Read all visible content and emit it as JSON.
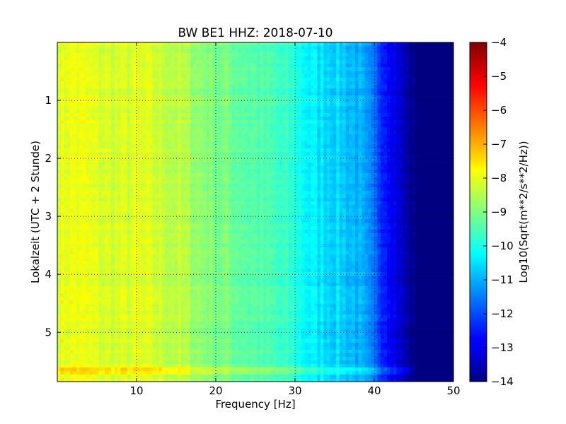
{
  "chart_data": {
    "type": "heatmap",
    "title": "BW BE1 HHZ: 2018-07-10",
    "xlabel": "Frequency [Hz]",
    "ylabel": "Lokalzeit (UTC + 2 Stunde)",
    "xlim": [
      0,
      50
    ],
    "ylim": [
      5.85,
      0
    ],
    "x_ticks": [
      10,
      20,
      30,
      40,
      50
    ],
    "x_tick_labels": [
      "10",
      "20",
      "30",
      "40",
      "50"
    ],
    "y_ticks": [
      1,
      2,
      3,
      4,
      5
    ],
    "y_tick_labels": [
      "1",
      "2",
      "3",
      "4",
      "5"
    ],
    "grid": true,
    "colormap": "jet",
    "colorbar": {
      "label": "Log10(Sqrt(m**2/s**2/Hz))",
      "range": [
        -14,
        -4
      ],
      "ticks": [
        -4,
        -5,
        -6,
        -7,
        -8,
        -9,
        -10,
        -11,
        -12,
        -13,
        -14
      ],
      "tick_labels": [
        "−4",
        "−5",
        "−6",
        "−7",
        "−8",
        "−9",
        "−10",
        "−11",
        "−12",
        "−13",
        "−14"
      ]
    },
    "spectrum_profile": {
      "frequency_hz": [
        0,
        2,
        5,
        8,
        10,
        12,
        15,
        18,
        20,
        25,
        28,
        30,
        32,
        35,
        38,
        40,
        42,
        44,
        45,
        50
      ],
      "log10_amplitude": [
        -8.0,
        -7.9,
        -8.1,
        -8.2,
        -8.1,
        -8.2,
        -8.4,
        -8.8,
        -9.0,
        -9.4,
        -9.7,
        -9.9,
        -10.4,
        -10.6,
        -11.0,
        -11.8,
        -12.6,
        -13.6,
        -14.0,
        -14.0
      ]
    }
  }
}
